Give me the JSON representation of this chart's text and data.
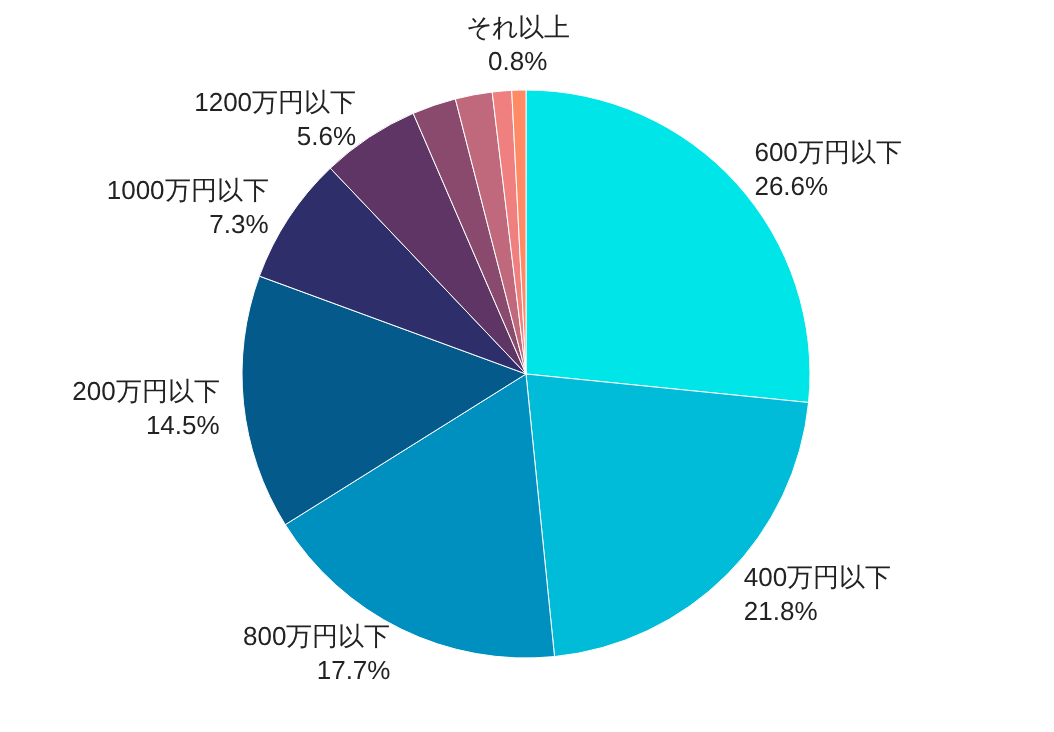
{
  "chart_data": {
    "type": "pie",
    "categories": [
      "600万円以下",
      "400万円以下",
      "800万円以下",
      "200万円以下",
      "1000万円以下",
      "1200万円以下",
      null,
      null,
      null,
      "それ以上"
    ],
    "values": [
      26.6,
      21.8,
      17.7,
      14.5,
      7.3,
      5.6,
      2.5,
      2.1,
      1.1,
      0.8
    ],
    "value_labels": [
      "26.6%",
      "21.8%",
      "17.7%",
      "14.5%",
      "7.3%",
      "5.6%",
      null,
      null,
      null,
      "0.8%"
    ],
    "colors": [
      "#00e5e8",
      "#00bcd8",
      "#0090c0",
      "#055a8c",
      "#2e2f6a",
      "#5e3565",
      "#8a4a6e",
      "#c0687c",
      "#f07f80",
      "#ff8a66"
    ]
  }
}
